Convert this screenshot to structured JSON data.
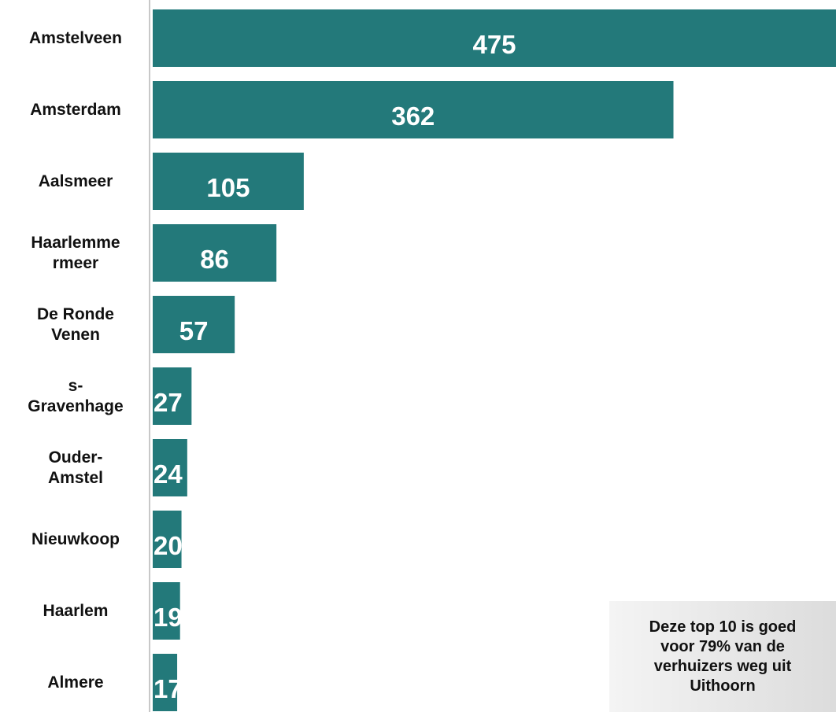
{
  "chart_data": {
    "type": "bar",
    "orientation": "horizontal",
    "categories": [
      "Amstelveen",
      "Amsterdam",
      "Aalsmeer",
      "Haarlemmermeer",
      "De Ronde Venen",
      "s-Gravenhage",
      "Ouder-Amstel",
      "Nieuwkoop",
      "Haarlem",
      "Almere"
    ],
    "category_label_lines": [
      [
        "Amstelveen"
      ],
      [
        "Amsterdam"
      ],
      [
        "Aalsmeer"
      ],
      [
        "Haarlemme",
        "rmeer"
      ],
      [
        "De Ronde",
        "Venen"
      ],
      [
        "s-",
        "Gravenhage"
      ],
      [
        "Ouder-",
        "Amstel"
      ],
      [
        "Nieuwkoop"
      ],
      [
        "Haarlem"
      ],
      [
        "Almere"
      ]
    ],
    "values": [
      475,
      362,
      105,
      86,
      57,
      27,
      24,
      20,
      19,
      17
    ],
    "xlim": [
      0,
      475
    ],
    "grid": false,
    "legend": "none",
    "bar_color": "#23797a",
    "label_color": "#ffffff",
    "note": "Deze top 10 is goed voor 79% van de verhuizers weg uit Uithoorn"
  }
}
